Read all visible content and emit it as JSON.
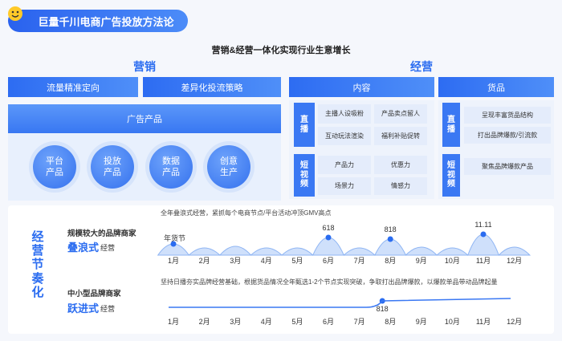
{
  "header": {
    "title": "巨量千川电商广告投放方法论",
    "subtitle": "营销&经营一体化实现行业生意增长"
  },
  "marketing": {
    "title": "营销",
    "tabs": [
      "流量精准定向",
      "差异化投流策略"
    ],
    "product_title": "广告产品",
    "products": [
      "平台产品",
      "投放产品",
      "数据产品",
      "创意生产"
    ]
  },
  "operation": {
    "title": "经营",
    "content": {
      "title": "内容",
      "groups": [
        {
          "channel": "直播",
          "items": [
            "主播人设吸粉",
            "产品卖点留人",
            "互动玩法渲染",
            "福利补贴促转"
          ]
        },
        {
          "channel": "短视频",
          "items": [
            "产品力",
            "优惠力",
            "场景力",
            "情感力"
          ]
        }
      ]
    },
    "goods": {
      "title": "货品",
      "groups": [
        {
          "channel": "直播",
          "items": [
            "呈现丰富货品结构",
            "打出品牌爆款/引流款"
          ]
        },
        {
          "channel": "短视频",
          "items": [
            "聚焦品牌爆款产品"
          ]
        }
      ]
    }
  },
  "rhythm": {
    "title": "经营节奏化",
    "months": [
      "1月",
      "2月",
      "3月",
      "4月",
      "5月",
      "6月",
      "7月",
      "8月",
      "9月",
      "10月",
      "11月",
      "12月"
    ],
    "rows": [
      {
        "merchant": "规模较大的品牌商家",
        "mode": "叠浪式",
        "mode_suffix": "经营",
        "note": "全年叠浪式经营，紧抓每个电商节点/平台活动冲顶GMV高点",
        "events": [
          "年货节",
          "618",
          "818",
          "11.11"
        ]
      },
      {
        "merchant": "中小型品牌商家",
        "mode": "跃进式",
        "mode_suffix": "经营",
        "note": "坚持日播夯实品牌经营基础，根据货品情况全年甄选1-2个节点实现突破，争取打出品牌爆款，以爆款单品带动品牌起量",
        "events": [
          "818"
        ]
      }
    ]
  }
}
